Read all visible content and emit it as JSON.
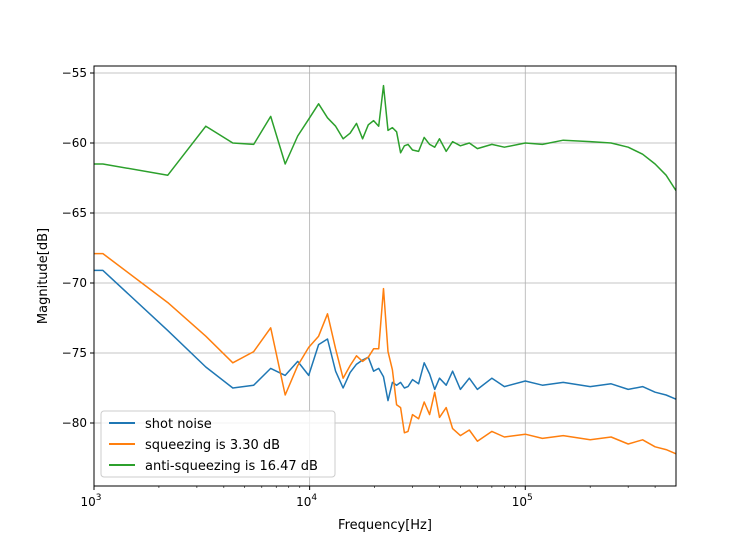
{
  "chart_data": {
    "type": "line",
    "xscale": "log",
    "xlabel": "Frequency[Hz]",
    "ylabel": "Magnitude[dB]",
    "xlim": [
      1000,
      500000
    ],
    "ylim": [
      -84.5,
      -54.5
    ],
    "x_ticks": [
      {
        "value": 1000,
        "base": "10",
        "exp": "3"
      },
      {
        "value": 10000,
        "base": "10",
        "exp": "4"
      },
      {
        "value": 100000,
        "base": "10",
        "exp": "5"
      }
    ],
    "y_ticks": [
      {
        "value": -55,
        "label": "−55"
      },
      {
        "value": -60,
        "label": "−60"
      },
      {
        "value": -65,
        "label": "−65"
      },
      {
        "value": -70,
        "label": "−70"
      },
      {
        "value": -75,
        "label": "−75"
      },
      {
        "value": -80,
        "label": "−80"
      }
    ],
    "grid": true,
    "legend_position": "lower-left",
    "series": [
      {
        "name": "shot noise",
        "color": "#1f77b4",
        "x": [
          1000,
          1100,
          2200,
          3300,
          4400,
          5500,
          6600,
          7700,
          8800,
          9900,
          11000,
          12100,
          13200,
          14300,
          15400,
          16500,
          17600,
          18700,
          19800,
          20900,
          22000,
          23100,
          24200,
          25300,
          26400,
          27500,
          28600,
          30000,
          32000,
          34000,
          36000,
          38000,
          40000,
          43000,
          46000,
          50000,
          55000,
          60000,
          70000,
          80000,
          100000,
          120000,
          150000,
          200000,
          250000,
          300000,
          350000,
          400000,
          450000,
          500000
        ],
        "values": [
          -69.1,
          -69.1,
          -73.4,
          -76.0,
          -77.5,
          -77.3,
          -76.1,
          -76.6,
          -75.6,
          -76.6,
          -74.4,
          -74.0,
          -76.3,
          -77.5,
          -76.4,
          -75.8,
          -75.5,
          -75.3,
          -76.3,
          -76.1,
          -76.7,
          -78.4,
          -77.1,
          -77.3,
          -77.1,
          -77.5,
          -77.4,
          -76.9,
          -77.2,
          -75.7,
          -76.5,
          -77.6,
          -76.8,
          -77.3,
          -76.3,
          -77.6,
          -76.8,
          -77.6,
          -76.8,
          -77.4,
          -77.0,
          -77.3,
          -77.1,
          -77.4,
          -77.2,
          -77.6,
          -77.4,
          -77.8,
          -78.0,
          -78.3
        ]
      },
      {
        "name": "squeezing is 3.30 dB",
        "color": "#ff7f0e",
        "x": [
          1000,
          1100,
          2200,
          3300,
          4400,
          5500,
          6600,
          7700,
          8800,
          9900,
          11000,
          12100,
          13200,
          14300,
          15400,
          16500,
          17600,
          18700,
          19800,
          20900,
          22000,
          23100,
          24200,
          25300,
          26400,
          27500,
          28600,
          30000,
          32000,
          34000,
          36000,
          38000,
          40000,
          43000,
          46000,
          50000,
          55000,
          60000,
          70000,
          80000,
          100000,
          120000,
          150000,
          200000,
          250000,
          300000,
          350000,
          400000,
          450000,
          500000
        ],
        "values": [
          -67.9,
          -67.9,
          -71.4,
          -73.8,
          -75.7,
          -74.9,
          -73.2,
          -78.0,
          -75.9,
          -74.6,
          -73.8,
          -72.2,
          -74.7,
          -76.8,
          -75.9,
          -75.2,
          -75.6,
          -75.3,
          -74.7,
          -74.7,
          -70.4,
          -74.9,
          -76.2,
          -78.7,
          -78.9,
          -80.7,
          -80.6,
          -79.4,
          -79.7,
          -78.5,
          -79.4,
          -77.8,
          -79.6,
          -78.9,
          -80.4,
          -80.9,
          -80.5,
          -81.3,
          -80.6,
          -81.0,
          -80.8,
          -81.1,
          -80.9,
          -81.2,
          -81.0,
          -81.5,
          -81.2,
          -81.7,
          -81.9,
          -82.2
        ]
      },
      {
        "name": "anti-squeezing is 16.47 dB",
        "color": "#2ca02c",
        "x": [
          1000,
          1100,
          2200,
          3300,
          4400,
          5500,
          6600,
          7700,
          8800,
          9900,
          11000,
          12100,
          13200,
          14300,
          15400,
          16500,
          17600,
          18700,
          19800,
          20900,
          22000,
          23100,
          24200,
          25300,
          26400,
          27500,
          28600,
          30000,
          32000,
          34000,
          36000,
          38000,
          40000,
          43000,
          46000,
          50000,
          55000,
          60000,
          70000,
          80000,
          100000,
          120000,
          150000,
          200000,
          250000,
          300000,
          350000,
          400000,
          450000,
          500000
        ],
        "values": [
          -61.5,
          -61.5,
          -62.3,
          -58.8,
          -60.0,
          -60.1,
          -58.1,
          -61.5,
          -59.5,
          -58.3,
          -57.2,
          -58.2,
          -58.8,
          -59.7,
          -59.3,
          -58.6,
          -59.7,
          -58.7,
          -58.4,
          -58.8,
          -55.9,
          -59.1,
          -58.9,
          -59.2,
          -60.7,
          -60.2,
          -60.1,
          -60.5,
          -60.6,
          -59.6,
          -60.1,
          -60.3,
          -59.7,
          -60.6,
          -59.9,
          -60.2,
          -60.0,
          -60.4,
          -60.1,
          -60.3,
          -60.0,
          -60.1,
          -59.8,
          -59.9,
          -60.0,
          -60.3,
          -60.8,
          -61.5,
          -62.3,
          -63.4
        ]
      }
    ]
  }
}
